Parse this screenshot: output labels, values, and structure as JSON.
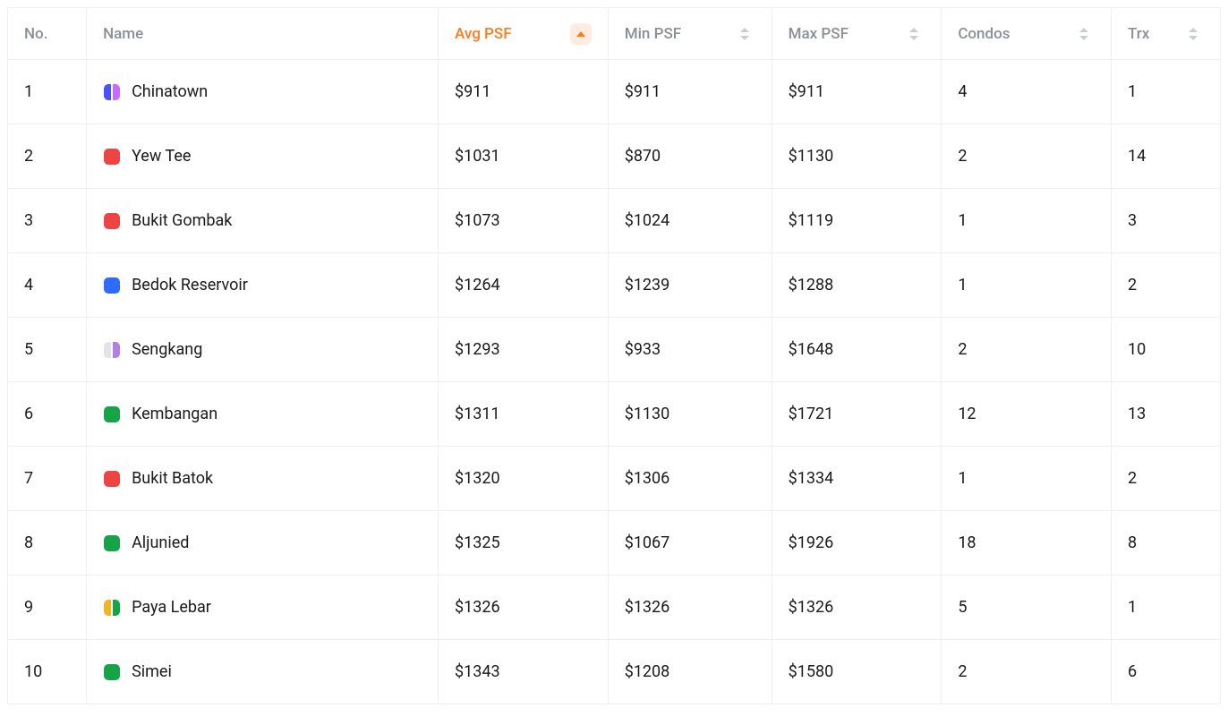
{
  "palette": {
    "text": "#1a1a1a",
    "muted_text": "#8a8f98",
    "border": "#eef0f2",
    "accent": "#ff7a1a",
    "accent_bg": "#ffece0"
  },
  "table": {
    "sorted_column": "avg_psf",
    "sort_direction": "asc",
    "columns": [
      {
        "key": "no",
        "label": "No.",
        "sortable": false,
        "active": false
      },
      {
        "key": "name",
        "label": "Name",
        "sortable": false,
        "active": false
      },
      {
        "key": "avg_psf",
        "label": "Avg PSF",
        "sortable": true,
        "active": true
      },
      {
        "key": "min_psf",
        "label": "Min PSF",
        "sortable": true,
        "active": false
      },
      {
        "key": "max_psf",
        "label": "Max PSF",
        "sortable": true,
        "active": false
      },
      {
        "key": "condos",
        "label": "Condos",
        "sortable": true,
        "active": false
      },
      {
        "key": "trx",
        "label": "Trx",
        "sortable": true,
        "active": false
      }
    ],
    "rows": [
      {
        "no": "1",
        "name": "Chinatown",
        "icon_colors": [
          "#4a52ff",
          "#c96bff"
        ],
        "avg_psf": "$911",
        "min_psf": "$911",
        "max_psf": "$911",
        "condos": "4",
        "trx": "1"
      },
      {
        "no": "2",
        "name": "Yew Tee",
        "icon_colors": [
          "#ef4444"
        ],
        "avg_psf": "$1031",
        "min_psf": "$870",
        "max_psf": "$1130",
        "condos": "2",
        "trx": "14"
      },
      {
        "no": "3",
        "name": "Bukit Gombak",
        "icon_colors": [
          "#ef4444"
        ],
        "avg_psf": "$1073",
        "min_psf": "$1024",
        "max_psf": "$1119",
        "condos": "1",
        "trx": "3"
      },
      {
        "no": "4",
        "name": "Bedok Reservoir",
        "icon_colors": [
          "#2f6bff"
        ],
        "avg_psf": "$1264",
        "min_psf": "$1239",
        "max_psf": "$1288",
        "condos": "1",
        "trx": "2"
      },
      {
        "no": "5",
        "name": "Sengkang",
        "icon_colors": [
          "#e3e4e7",
          "#b07fe8"
        ],
        "avg_psf": "$1293",
        "min_psf": "$933",
        "max_psf": "$1648",
        "condos": "2",
        "trx": "10"
      },
      {
        "no": "6",
        "name": "Kembangan",
        "icon_colors": [
          "#16a34a"
        ],
        "avg_psf": "$1311",
        "min_psf": "$1130",
        "max_psf": "$1721",
        "condos": "12",
        "trx": "13"
      },
      {
        "no": "7",
        "name": "Bukit Batok",
        "icon_colors": [
          "#ef4444"
        ],
        "avg_psf": "$1320",
        "min_psf": "$1306",
        "max_psf": "$1334",
        "condos": "1",
        "trx": "2"
      },
      {
        "no": "8",
        "name": "Aljunied",
        "icon_colors": [
          "#16a34a"
        ],
        "avg_psf": "$1325",
        "min_psf": "$1067",
        "max_psf": "$1926",
        "condos": "18",
        "trx": "8"
      },
      {
        "no": "9",
        "name": "Paya Lebar",
        "icon_colors": [
          "#f0b429",
          "#16a34a"
        ],
        "avg_psf": "$1326",
        "min_psf": "$1326",
        "max_psf": "$1326",
        "condos": "5",
        "trx": "1"
      },
      {
        "no": "10",
        "name": "Simei",
        "icon_colors": [
          "#16a34a"
        ],
        "avg_psf": "$1343",
        "min_psf": "$1208",
        "max_psf": "$1580",
        "condos": "2",
        "trx": "6"
      }
    ]
  }
}
